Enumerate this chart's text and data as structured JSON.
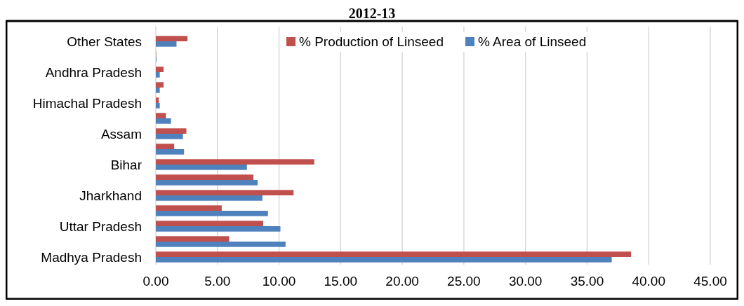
{
  "chart_data": {
    "type": "bar",
    "orientation": "horizontal",
    "title": "2012-13",
    "categories": [
      "Other States",
      null,
      "Andhra Pradesh",
      null,
      "Himachal Pradesh",
      null,
      "Assam",
      null,
      "Bihar",
      null,
      "Jharkhand",
      null,
      "Uttar Pradesh",
      null,
      "Madhya Pradesh"
    ],
    "series": [
      {
        "name": "% Production of Linseed",
        "color": "#c0504d",
        "values": [
          2.57,
          0.03,
          0.63,
          0.63,
          0.24,
          0.82,
          2.48,
          1.49,
          12.86,
          7.92,
          11.18,
          5.35,
          8.72,
          5.95,
          38.57
        ]
      },
      {
        "name": "% Area of Linseed",
        "color": "#4f81bd",
        "values": [
          1.68,
          0.05,
          0.32,
          0.32,
          0.32,
          1.23,
          2.2,
          2.29,
          7.39,
          8.26,
          8.65,
          9.1,
          10.11,
          10.53,
          37.0
        ]
      }
    ],
    "xlim": [
      0,
      45
    ],
    "xticks": [
      {
        "value": 0,
        "label": "0.00"
      },
      {
        "value": 5,
        "label": "5.00"
      },
      {
        "value": 10,
        "label": "10.00"
      },
      {
        "value": 15,
        "label": "15.00"
      },
      {
        "value": 20,
        "label": "20.00"
      },
      {
        "value": 25,
        "label": "25.00"
      },
      {
        "value": 30,
        "label": "30.00"
      },
      {
        "value": 35,
        "label": "35.00"
      },
      {
        "value": 40,
        "label": "40.00"
      },
      {
        "value": 45,
        "label": "45.00"
      }
    ],
    "grid": "x",
    "legend": "top right"
  }
}
